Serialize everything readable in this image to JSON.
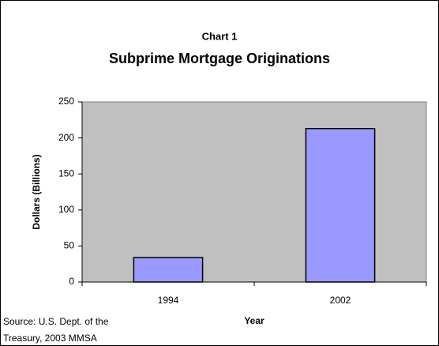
{
  "chart_data": {
    "type": "bar",
    "title": "Chart 1",
    "subtitle": "Subprime Mortgage Originations",
    "categories": [
      "1994",
      "2002"
    ],
    "values": [
      34,
      213
    ],
    "color": "#9999ff",
    "ylim": [
      0,
      250
    ],
    "yticks": [
      0,
      50,
      100,
      150,
      200,
      250
    ],
    "x_label": "Year",
    "y_label": "Dollars (Billions)",
    "source": [
      "Source: U.S. Dept. of the",
      "Treasury, 2003 MMSA"
    ]
  }
}
